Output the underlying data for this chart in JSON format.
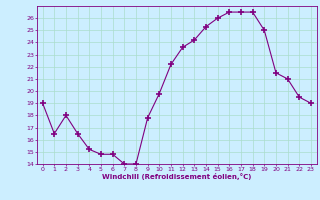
{
  "x": [
    0,
    1,
    2,
    3,
    4,
    5,
    6,
    7,
    8,
    9,
    10,
    11,
    12,
    13,
    14,
    15,
    16,
    17,
    18,
    19,
    20,
    21,
    22,
    23
  ],
  "y": [
    19.0,
    16.5,
    18.0,
    16.5,
    15.2,
    14.8,
    14.8,
    14.0,
    14.0,
    17.8,
    19.8,
    22.2,
    23.6,
    24.2,
    25.3,
    26.0,
    26.5,
    26.5,
    26.5,
    25.0,
    21.5,
    21.0,
    19.5,
    19.0
  ],
  "xlim": [
    -0.5,
    23.5
  ],
  "ylim": [
    14,
    27
  ],
  "yticks": [
    14,
    15,
    16,
    17,
    18,
    19,
    20,
    21,
    22,
    23,
    24,
    25,
    26
  ],
  "xticks": [
    0,
    1,
    2,
    3,
    4,
    5,
    6,
    7,
    8,
    9,
    10,
    11,
    12,
    13,
    14,
    15,
    16,
    17,
    18,
    19,
    20,
    21,
    22,
    23
  ],
  "xlabel": "Windchill (Refroidissement éolien,°C)",
  "line_color": "#800080",
  "marker": "+",
  "marker_size": 5,
  "bg_color": "#cceeff",
  "grid_color": "#aaddcc",
  "tick_color": "#800080",
  "label_color": "#800080"
}
